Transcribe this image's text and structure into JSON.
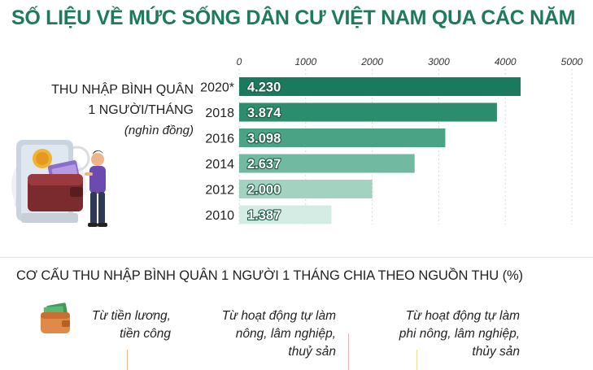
{
  "title": "SỐ LIỆU VỀ MỨC SỐNG DÂN CƯ VIỆT NAM QUA CÁC NĂM",
  "income_label": {
    "line1": "THU NHẬP BÌNH QUÂN",
    "line2": "1 NGƯỜI/THÁNG",
    "unit": "(nghìn đồng)"
  },
  "chart_data": {
    "type": "bar",
    "orientation": "horizontal",
    "categories": [
      "2020*",
      "2018",
      "2016",
      "2014",
      "2012",
      "2010"
    ],
    "values": [
      4230,
      3874,
      3098,
      2637,
      2000,
      1387
    ],
    "value_labels": [
      "4.230",
      "3.874",
      "3.098",
      "2.637",
      "2.000",
      "1.387"
    ],
    "xlim": [
      0,
      5000
    ],
    "x_ticks": [
      0,
      1000,
      2000,
      3000,
      4000,
      5000
    ],
    "x_tick_labels": [
      "0",
      "1000",
      "2000",
      "3000",
      "4000",
      "5000"
    ],
    "bar_colors": [
      "#1a7a5e",
      "#2b8c6e",
      "#4aa385",
      "#72b9a1",
      "#a3d2c1",
      "#d5ece4"
    ],
    "grid": true,
    "legend": "none"
  },
  "structure": {
    "title": "CƠ CẤU THU NHẬP BÌNH QUÂN 1 NGƯỜI 1 THÁNG CHIA THEO NGUỒN THU (%)",
    "sources": [
      {
        "label": "Từ tiền lương,\ntiền công",
        "icon": "wallet-money-icon",
        "color": "#e08a4a"
      },
      {
        "label": "Từ hoạt động tự làm\nnông, lâm nghiệp,\nthuỷ sản",
        "color": "#e87a8a"
      },
      {
        "label": "Từ hoạt động tự làm\nphi nông, lâm nghiệp,\nthủy sản",
        "color": "#e8d070"
      }
    ]
  },
  "illustration": {
    "icon": "person-phone-wallet-icon"
  }
}
